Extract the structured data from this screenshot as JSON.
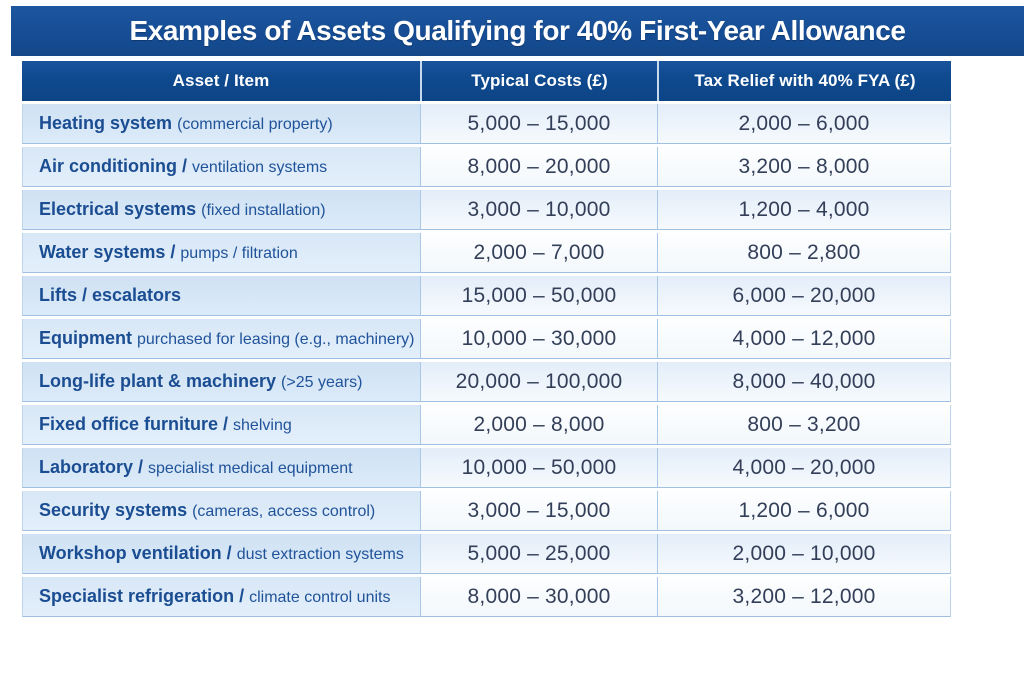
{
  "page": {
    "title": "Examples of Assets Qualifying for 40% First-Year Allowance"
  },
  "colors": {
    "banner_navy": "#164d95",
    "header_navy": "#0f4a8f",
    "row_blue": "#d6e5f5",
    "row_value_tint": "#eaf1fa",
    "asset_text": "#1b4d92",
    "value_text": "#333f58",
    "grid_line": "#9fc0e1",
    "background": "#ffffff"
  },
  "table": {
    "columns": [
      "Asset / Item",
      "Typical Costs (£)",
      "Tax Relief with 40% FYA (£)"
    ],
    "rows": [
      {
        "asset_main": "Heating system",
        "asset_secondary": "(commercial property)",
        "typical_costs": "5,000 – 15,000",
        "tax_relief": "2,000 – 6,000"
      },
      {
        "asset_main": "Air conditioning /",
        "asset_secondary": "ventilation systems",
        "typical_costs": "8,000 – 20,000",
        "tax_relief": "3,200 – 8,000"
      },
      {
        "asset_main": "Electrical systems",
        "asset_secondary": "(fixed installation)",
        "typical_costs": "3,000 – 10,000",
        "tax_relief": "1,200 – 4,000"
      },
      {
        "asset_main": "Water systems /",
        "asset_secondary": "pumps / filtration",
        "typical_costs": "2,000 – 7,000",
        "tax_relief": "800 – 2,800"
      },
      {
        "asset_main": "Lifts / escalators",
        "asset_secondary": "",
        "typical_costs": "15,000 – 50,000",
        "tax_relief": "6,000 – 20,000"
      },
      {
        "asset_main": "Equipment",
        "asset_secondary": "purchased for leasing (e.g., machinery)",
        "typical_costs": "10,000 – 30,000",
        "tax_relief": "4,000 – 12,000"
      },
      {
        "asset_main": "Long-life plant & machinery",
        "asset_secondary": "(>25 years)",
        "typical_costs": "20,000 – 100,000",
        "tax_relief": "8,000 – 40,000"
      },
      {
        "asset_main": "Fixed office furniture /",
        "asset_secondary": "shelving",
        "typical_costs": "2,000 – 8,000",
        "tax_relief": "800 – 3,200"
      },
      {
        "asset_main": "Laboratory /",
        "asset_secondary": "specialist medical equipment",
        "typical_costs": "10,000 – 50,000",
        "tax_relief": "4,000 – 20,000"
      },
      {
        "asset_main": "Security systems",
        "asset_secondary": "(cameras, access control)",
        "typical_costs": "3,000 – 15,000",
        "tax_relief": "1,200 – 6,000"
      },
      {
        "asset_main": "Workshop ventilation /",
        "asset_secondary": "dust extraction systems",
        "typical_costs": "5,000 – 25,000",
        "tax_relief": "2,000 – 10,000"
      },
      {
        "asset_main": "Specialist refrigeration /",
        "asset_secondary": "climate control units",
        "typical_costs": "8,000 – 30,000",
        "tax_relief": "3,200 – 12,000"
      }
    ]
  },
  "chart_data": {
    "type": "table",
    "title": "Examples of Assets Qualifying for 40% First-Year Allowance",
    "columns": [
      "Asset / Item",
      "Typical Costs (£)",
      "Tax Relief with 40% FYA (£)"
    ],
    "rows": [
      [
        "Heating system (commercial property)",
        "5,000 – 15,000",
        "2,000 – 6,000"
      ],
      [
        "Air conditioning / ventilation systems",
        "8,000 – 20,000",
        "3,200 – 8,000"
      ],
      [
        "Electrical systems (fixed installation)",
        "3,000 – 10,000",
        "1,200 – 4,000"
      ],
      [
        "Water systems / pumps / filtration",
        "2,000 – 7,000",
        "800 – 2,800"
      ],
      [
        "Lifts / escalators",
        "15,000 – 50,000",
        "6,000 – 20,000"
      ],
      [
        "Equipment purchased for leasing (e.g., machinery)",
        "10,000 – 30,000",
        "4,000 – 12,000"
      ],
      [
        "Long-life plant & machinery (>25 years)",
        "20,000 – 100,000",
        "8,000 – 40,000"
      ],
      [
        "Fixed office furniture / shelving",
        "2,000 – 8,000",
        "800 – 3,200"
      ],
      [
        "Laboratory / specialist medical equipment",
        "10,000 – 50,000",
        "4,000 – 20,000"
      ],
      [
        "Security systems (cameras, access control)",
        "3,000 – 15,000",
        "1,200 – 6,000"
      ],
      [
        "Workshop ventilation / dust extraction systems",
        "5,000 – 25,000",
        "2,000 – 10,000"
      ],
      [
        "Specialist refrigeration / climate control units",
        "8,000 – 30,000",
        "3,200 – 12,000"
      ]
    ],
    "layout": {
      "header_position": "top",
      "grid": true,
      "row_striping": true
    }
  }
}
